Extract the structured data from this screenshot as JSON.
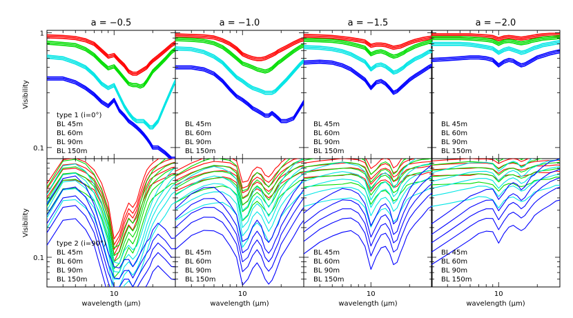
{
  "chart_data": {
    "type": "line",
    "layout": {
      "rows": 2,
      "cols": 4
    },
    "xlabel": "wavelength (μm)",
    "ylabel": "Visibility",
    "xscale": "log",
    "yscale": "log",
    "xlim": [
      3,
      30
    ],
    "top_ylim": [
      0.08,
      1.05
    ],
    "bottom_ylim": [
      0.05,
      1.0
    ],
    "x_tick_labels": [
      "10"
    ],
    "top_y_tick_labels": [
      "1",
      "0.1"
    ],
    "bottom_y_tick_labels": [
      "0.1"
    ],
    "columns": [
      {
        "title": "a = −0.5"
      },
      {
        "title": "a = −1.0"
      },
      {
        "title": "a = −1.5"
      },
      {
        "title": "a = −2.0"
      }
    ],
    "rows": [
      {
        "type_label": "type 1 (i=0°)"
      },
      {
        "type_label": "type 2 (i=90°)"
      }
    ],
    "legend": [
      {
        "label": "BL 45m",
        "color": "#ff0000"
      },
      {
        "label": "BL 60m",
        "color": "#00dd00"
      },
      {
        "label": "BL 90m",
        "color": "#00e5e5"
      },
      {
        "label": "BL 150m",
        "color": "#0000ff"
      }
    ],
    "x": [
      3,
      4,
      5,
      6,
      7,
      8,
      9,
      10,
      11,
      12,
      13,
      14,
      15,
      16,
      17,
      18,
      19,
      20,
      22,
      25,
      28,
      30
    ],
    "panels": [
      {
        "row": 0,
        "col": 0,
        "series": [
          {
            "baseline": "BL 45m",
            "values": [
              0.93,
              0.92,
              0.9,
              0.86,
              0.8,
              0.7,
              0.62,
              0.64,
              0.57,
              0.52,
              0.46,
              0.44,
              0.44,
              0.46,
              0.48,
              0.5,
              0.54,
              0.57,
              0.62,
              0.7,
              0.78,
              0.82
            ]
          },
          {
            "baseline": "BL 60m",
            "values": [
              0.82,
              0.8,
              0.78,
              0.72,
              0.64,
              0.55,
              0.49,
              0.51,
              0.45,
              0.4,
              0.36,
              0.35,
              0.35,
              0.34,
              0.35,
              0.38,
              0.42,
              0.46,
              0.51,
              0.59,
              0.68,
              0.72
            ]
          },
          {
            "baseline": "BL 90m",
            "values": [
              0.62,
              0.6,
              0.55,
              0.5,
              0.43,
              0.36,
              0.33,
              0.35,
              0.28,
              0.23,
              0.2,
              0.18,
              0.17,
              0.17,
              0.17,
              0.16,
              0.15,
              0.15,
              0.17,
              0.24,
              0.32,
              0.38
            ]
          },
          {
            "baseline": "BL 150m",
            "values": [
              0.4,
              0.4,
              0.37,
              0.33,
              0.29,
              0.25,
              0.23,
              0.26,
              0.21,
              0.19,
              0.17,
              0.16,
              0.15,
              0.14,
              0.13,
              0.12,
              0.11,
              0.1,
              0.1,
              0.09,
              0.08,
              0.08
            ]
          }
        ]
      },
      {
        "row": 0,
        "col": 1,
        "series": [
          {
            "baseline": "BL 45m",
            "values": [
              0.95,
              0.94,
              0.93,
              0.91,
              0.86,
              0.8,
              0.73,
              0.65,
              0.62,
              0.6,
              0.59,
              0.59,
              0.6,
              0.62,
              0.64,
              0.66,
              0.69,
              0.71,
              0.75,
              0.81,
              0.86,
              0.88
            ]
          },
          {
            "baseline": "BL 60m",
            "values": [
              0.88,
              0.87,
              0.85,
              0.81,
              0.75,
              0.67,
              0.6,
              0.54,
              0.52,
              0.5,
              0.48,
              0.47,
              0.46,
              0.47,
              0.49,
              0.52,
              0.55,
              0.57,
              0.62,
              0.69,
              0.75,
              0.78
            ]
          },
          {
            "baseline": "BL 90m",
            "values": [
              0.73,
              0.72,
              0.68,
              0.62,
              0.55,
              0.47,
              0.41,
              0.38,
              0.35,
              0.33,
              0.32,
              0.31,
              0.3,
              0.3,
              0.3,
              0.31,
              0.33,
              0.35,
              0.39,
              0.46,
              0.53,
              0.57
            ]
          },
          {
            "baseline": "BL 150m",
            "values": [
              0.5,
              0.5,
              0.48,
              0.44,
              0.38,
              0.32,
              0.28,
              0.26,
              0.24,
              0.22,
              0.21,
              0.2,
              0.19,
              0.19,
              0.2,
              0.19,
              0.18,
              0.17,
              0.17,
              0.18,
              0.22,
              0.25
            ]
          }
        ]
      },
      {
        "row": 0,
        "col": 2,
        "series": [
          {
            "baseline": "BL 45m",
            "values": [
              0.94,
              0.93,
              0.92,
              0.9,
              0.88,
              0.86,
              0.84,
              0.77,
              0.79,
              0.79,
              0.78,
              0.76,
              0.74,
              0.75,
              0.76,
              0.78,
              0.8,
              0.82,
              0.85,
              0.88,
              0.9,
              0.91
            ]
          },
          {
            "baseline": "BL 60m",
            "values": [
              0.87,
              0.86,
              0.85,
              0.83,
              0.8,
              0.77,
              0.74,
              0.65,
              0.68,
              0.69,
              0.67,
              0.64,
              0.62,
              0.63,
              0.65,
              0.67,
              0.7,
              0.72,
              0.76,
              0.8,
              0.83,
              0.85
            ]
          },
          {
            "baseline": "BL 90m",
            "values": [
              0.75,
              0.74,
              0.72,
              0.69,
              0.65,
              0.6,
              0.56,
              0.48,
              0.52,
              0.53,
              0.51,
              0.48,
              0.45,
              0.46,
              0.48,
              0.5,
              0.53,
              0.55,
              0.59,
              0.63,
              0.68,
              0.7
            ]
          },
          {
            "baseline": "BL 150m",
            "values": [
              0.55,
              0.56,
              0.55,
              0.52,
              0.48,
              0.43,
              0.39,
              0.33,
              0.37,
              0.38,
              0.36,
              0.33,
              0.3,
              0.31,
              0.33,
              0.35,
              0.37,
              0.39,
              0.42,
              0.46,
              0.5,
              0.52
            ]
          }
        ]
      },
      {
        "row": 0,
        "col": 3,
        "series": [
          {
            "baseline": "BL 45m",
            "values": [
              0.95,
              0.95,
              0.95,
              0.95,
              0.94,
              0.93,
              0.92,
              0.88,
              0.91,
              0.92,
              0.91,
              0.9,
              0.89,
              0.9,
              0.91,
              0.92,
              0.93,
              0.94,
              0.95,
              0.96,
              0.96,
              0.96
            ]
          },
          {
            "baseline": "BL 60m",
            "values": [
              0.9,
              0.9,
              0.9,
              0.89,
              0.88,
              0.87,
              0.85,
              0.8,
              0.84,
              0.85,
              0.84,
              0.82,
              0.81,
              0.82,
              0.83,
              0.85,
              0.86,
              0.87,
              0.89,
              0.9,
              0.91,
              0.92
            ]
          },
          {
            "baseline": "BL 90m",
            "values": [
              0.8,
              0.8,
              0.8,
              0.79,
              0.77,
              0.75,
              0.73,
              0.67,
              0.71,
              0.73,
              0.71,
              0.69,
              0.67,
              0.68,
              0.7,
              0.72,
              0.74,
              0.75,
              0.78,
              0.8,
              0.82,
              0.83
            ]
          },
          {
            "baseline": "BL 150m",
            "values": [
              0.58,
              0.59,
              0.6,
              0.61,
              0.61,
              0.6,
              0.58,
              0.52,
              0.56,
              0.58,
              0.57,
              0.54,
              0.52,
              0.53,
              0.55,
              0.57,
              0.59,
              0.61,
              0.63,
              0.66,
              0.68,
              0.69
            ]
          }
        ]
      },
      {
        "row": 1,
        "col": 0,
        "series": [
          {
            "baseline": "BL 45m",
            "values": [
              0.45,
              0.78,
              0.8,
              0.72,
              0.62,
              0.45,
              0.28,
              0.12,
              0.15,
              0.22,
              0.28,
              0.25,
              0.3,
              0.4,
              0.5,
              0.6,
              0.68,
              0.72,
              0.78,
              0.85,
              0.9,
              0.92
            ]
          },
          {
            "baseline": "BL 60m",
            "values": [
              0.38,
              0.7,
              0.72,
              0.64,
              0.52,
              0.36,
              0.22,
              0.09,
              0.1,
              0.14,
              0.18,
              0.16,
              0.19,
              0.26,
              0.34,
              0.43,
              0.5,
              0.56,
              0.63,
              0.72,
              0.78,
              0.8
            ]
          },
          {
            "baseline": "BL 90m",
            "values": [
              0.3,
              0.58,
              0.6,
              0.5,
              0.38,
              0.24,
              0.14,
              0.06,
              0.06,
              0.08,
              0.09,
              0.08,
              0.09,
              0.11,
              0.14,
              0.18,
              0.22,
              0.26,
              0.33,
              0.42,
              0.52,
              0.56
            ]
          },
          {
            "baseline": "BL 150m",
            "values": [
              0.22,
              0.4,
              0.42,
              0.33,
              0.22,
              0.12,
              0.07,
              0.05,
              0.05,
              0.06,
              0.06,
              0.05,
              0.06,
              0.07,
              0.08,
              0.09,
              0.1,
              0.12,
              0.14,
              0.12,
              0.1,
              0.1
            ]
          }
        ]
      },
      {
        "row": 1,
        "col": 1,
        "series": [
          {
            "baseline": "BL 45m",
            "values": [
              0.6,
              0.72,
              0.8,
              0.84,
              0.84,
              0.82,
              0.75,
              0.45,
              0.48,
              0.6,
              0.65,
              0.62,
              0.55,
              0.52,
              0.56,
              0.62,
              0.68,
              0.73,
              0.8,
              0.88,
              0.92,
              0.94
            ]
          },
          {
            "baseline": "BL 60m",
            "values": [
              0.5,
              0.62,
              0.7,
              0.74,
              0.74,
              0.71,
              0.62,
              0.34,
              0.37,
              0.48,
              0.53,
              0.49,
              0.42,
              0.38,
              0.42,
              0.48,
              0.55,
              0.6,
              0.68,
              0.78,
              0.84,
              0.86
            ]
          },
          {
            "baseline": "BL 90m",
            "values": [
              0.36,
              0.46,
              0.53,
              0.56,
              0.55,
              0.5,
              0.42,
              0.2,
              0.23,
              0.31,
              0.35,
              0.32,
              0.26,
              0.22,
              0.25,
              0.3,
              0.35,
              0.4,
              0.48,
              0.58,
              0.66,
              0.7
            ]
          },
          {
            "baseline": "BL 150m",
            "values": [
              0.2,
              0.28,
              0.32,
              0.32,
              0.28,
              0.22,
              0.17,
              0.09,
              0.1,
              0.13,
              0.15,
              0.13,
              0.1,
              0.09,
              0.1,
              0.12,
              0.14,
              0.17,
              0.21,
              0.28,
              0.35,
              0.4
            ]
          }
        ]
      },
      {
        "row": 1,
        "col": 2,
        "series": [
          {
            "baseline": "BL 45m",
            "values": [
              0.82,
              0.86,
              0.88,
              0.9,
              0.9,
              0.88,
              0.82,
              0.62,
              0.7,
              0.78,
              0.8,
              0.76,
              0.65,
              0.68,
              0.76,
              0.82,
              0.86,
              0.88,
              0.9,
              0.92,
              0.93,
              0.94
            ]
          },
          {
            "baseline": "BL 60m",
            "values": [
              0.72,
              0.76,
              0.78,
              0.8,
              0.8,
              0.77,
              0.7,
              0.5,
              0.58,
              0.66,
              0.68,
              0.63,
              0.52,
              0.55,
              0.64,
              0.7,
              0.75,
              0.78,
              0.82,
              0.85,
              0.87,
              0.88
            ]
          },
          {
            "baseline": "BL 90m",
            "values": [
              0.5,
              0.56,
              0.6,
              0.62,
              0.61,
              0.58,
              0.5,
              0.32,
              0.4,
              0.47,
              0.49,
              0.44,
              0.35,
              0.38,
              0.46,
              0.53,
              0.58,
              0.62,
              0.67,
              0.72,
              0.75,
              0.77
            ]
          },
          {
            "baseline": "BL 150m",
            "values": [
              0.18,
              0.24,
              0.28,
              0.31,
              0.31,
              0.28,
              0.22,
              0.13,
              0.17,
              0.21,
              0.22,
              0.19,
              0.14,
              0.15,
              0.19,
              0.23,
              0.27,
              0.31,
              0.37,
              0.45,
              0.52,
              0.56
            ]
          }
        ]
      },
      {
        "row": 1,
        "col": 3,
        "series": [
          {
            "baseline": "BL 45m",
            "values": [
              0.86,
              0.88,
              0.89,
              0.9,
              0.9,
              0.9,
              0.88,
              0.8,
              0.86,
              0.89,
              0.9,
              0.88,
              0.85,
              0.87,
              0.9,
              0.92,
              0.93,
              0.94,
              0.95,
              0.96,
              0.96,
              0.96
            ]
          },
          {
            "baseline": "BL 60m",
            "values": [
              0.76,
              0.78,
              0.8,
              0.81,
              0.81,
              0.8,
              0.78,
              0.68,
              0.75,
              0.79,
              0.8,
              0.77,
              0.73,
              0.75,
              0.79,
              0.82,
              0.84,
              0.86,
              0.88,
              0.9,
              0.91,
              0.92
            ]
          },
          {
            "baseline": "BL 90m",
            "values": [
              0.5,
              0.54,
              0.58,
              0.61,
              0.63,
              0.63,
              0.6,
              0.5,
              0.57,
              0.62,
              0.64,
              0.61,
              0.56,
              0.58,
              0.63,
              0.67,
              0.7,
              0.72,
              0.76,
              0.8,
              0.82,
              0.83
            ]
          },
          {
            "baseline": "BL 150m",
            "values": [
              0.14,
              0.18,
              0.22,
              0.26,
              0.29,
              0.31,
              0.31,
              0.24,
              0.29,
              0.34,
              0.36,
              0.34,
              0.31,
              0.33,
              0.37,
              0.41,
              0.44,
              0.47,
              0.52,
              0.58,
              0.62,
              0.64
            ]
          }
        ]
      }
    ]
  }
}
